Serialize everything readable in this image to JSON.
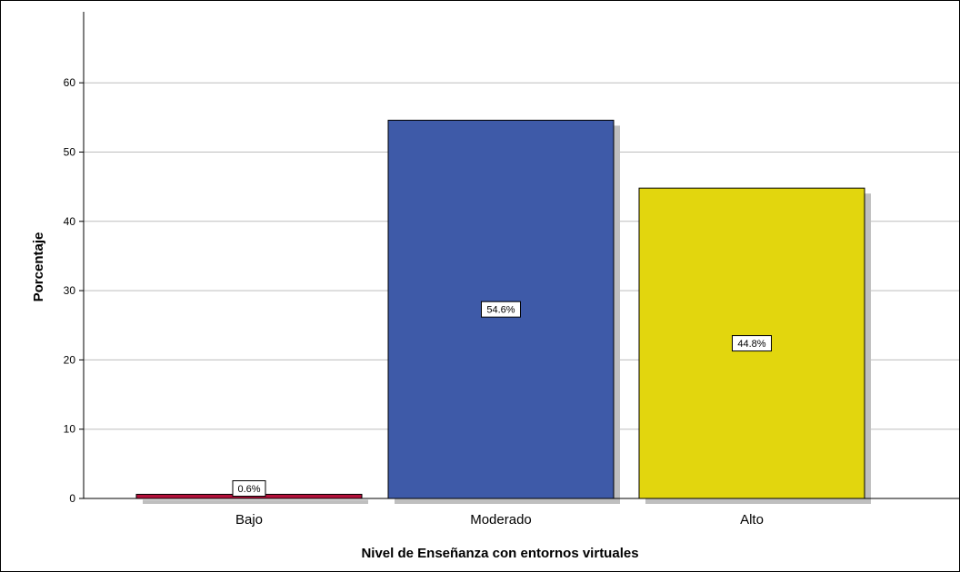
{
  "chart_data": {
    "type": "bar",
    "title": "",
    "xlabel": "Nivel de Enseñanza con entornos virtuales",
    "ylabel": "Porcentaje",
    "categories": [
      "Bajo",
      "Moderado",
      "Alto"
    ],
    "values": [
      0.6,
      54.6,
      44.8
    ],
    "data_labels": [
      "0.6%",
      "54.6%",
      "44.8%"
    ],
    "colors": [
      "#b2103a",
      "#3e5aa8",
      "#e2d60e"
    ],
    "ylim": [
      0,
      70
    ],
    "yticks": [
      0,
      10,
      20,
      30,
      40,
      50,
      60
    ],
    "grid": true,
    "shadow": true
  }
}
